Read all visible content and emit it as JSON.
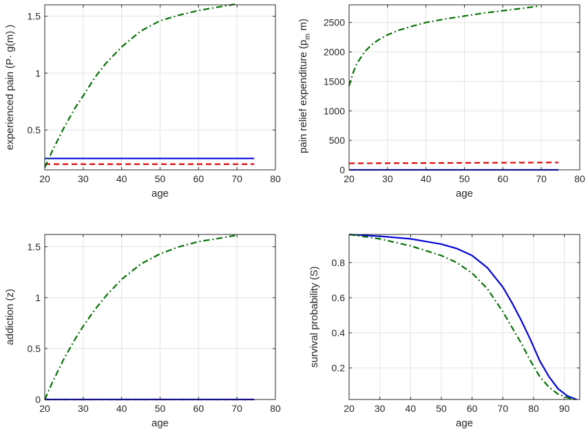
{
  "chart_data": [
    {
      "id": "experienced-pain",
      "type": "line",
      "xlabel": "age",
      "ylabel": "experienced pain (P· g(m) )",
      "xlim": [
        20,
        80
      ],
      "ylim": [
        0.15,
        1.6
      ],
      "xticks": [
        20,
        30,
        40,
        50,
        60,
        70,
        80
      ],
      "yticks": [
        0.5,
        1,
        1.5
      ],
      "ytick_labels": [
        "0.5",
        "1",
        "1.5"
      ],
      "grid": true,
      "series": [
        {
          "style": "solid",
          "color": "#0000dd",
          "x": [
            20,
            74.5
          ],
          "y": [
            0.25,
            0.25
          ]
        },
        {
          "style": "dashed",
          "color": "#dd0000",
          "x": [
            20,
            74.5
          ],
          "y": [
            0.2,
            0.2
          ]
        },
        {
          "style": "dashdot",
          "color": "#007000",
          "x": [
            20,
            22,
            25,
            28,
            30,
            33,
            36,
            40,
            45,
            50,
            55,
            60,
            65,
            69.5
          ],
          "y": [
            0.17,
            0.32,
            0.52,
            0.7,
            0.8,
            0.96,
            1.09,
            1.23,
            1.37,
            1.46,
            1.51,
            1.55,
            1.58,
            1.605
          ]
        }
      ]
    },
    {
      "id": "pain-relief-expenditure",
      "type": "line",
      "xlabel": "age",
      "ylabel": "pain relief expenditure (p",
      "ylabel_sub": "m",
      "ylabel_tail": " m)",
      "xlim": [
        20,
        80
      ],
      "ylim": [
        0,
        2800
      ],
      "xticks": [
        20,
        30,
        40,
        50,
        60,
        70,
        80
      ],
      "yticks": [
        0,
        500,
        1000,
        1500,
        2000,
        2500
      ],
      "ytick_labels": [
        "0",
        "500",
        "1000",
        "1500",
        "2000",
        "2500"
      ],
      "grid": true,
      "series": [
        {
          "style": "solid",
          "color": "#0000dd",
          "x": [
            20,
            74.5
          ],
          "y": [
            0,
            0
          ]
        },
        {
          "style": "dashed",
          "color": "#dd0000",
          "x": [
            20,
            74.5
          ],
          "y": [
            110,
            125
          ]
        },
        {
          "style": "dashdot",
          "color": "#007000",
          "x": [
            20,
            21,
            22,
            24,
            26,
            28,
            30,
            33,
            36,
            40,
            45,
            50,
            55,
            60,
            65,
            69.5
          ],
          "y": [
            1420,
            1640,
            1800,
            2000,
            2130,
            2220,
            2290,
            2370,
            2430,
            2500,
            2560,
            2610,
            2660,
            2700,
            2740,
            2780
          ]
        }
      ]
    },
    {
      "id": "addiction",
      "type": "line",
      "xlabel": "age",
      "ylabel": "addiction (z)",
      "xlim": [
        20,
        80
      ],
      "ylim": [
        0,
        1.62
      ],
      "xticks": [
        20,
        30,
        40,
        50,
        60,
        70,
        80
      ],
      "yticks": [
        0,
        0.5,
        1,
        1.5
      ],
      "ytick_labels": [
        "0",
        "0.5",
        "1",
        "1.5"
      ],
      "grid": true,
      "series": [
        {
          "style": "dashed",
          "color": "#dd0000",
          "x": [
            20,
            74.5
          ],
          "y": [
            0,
            0
          ]
        },
        {
          "style": "solid",
          "color": "#0000dd",
          "x": [
            20,
            74.5
          ],
          "y": [
            0,
            0
          ]
        },
        {
          "style": "dashdot",
          "color": "#007000",
          "x": [
            20,
            22,
            25,
            28,
            30,
            33,
            36,
            40,
            45,
            50,
            55,
            60,
            65,
            69.5
          ],
          "y": [
            0,
            0.17,
            0.4,
            0.6,
            0.72,
            0.88,
            1.02,
            1.18,
            1.33,
            1.43,
            1.5,
            1.55,
            1.58,
            1.61
          ]
        }
      ]
    },
    {
      "id": "survival-probability",
      "type": "line",
      "xlabel": "age",
      "ylabel": "survival probability (S)",
      "xlim": [
        20,
        95
      ],
      "ylim": [
        0.02,
        0.96
      ],
      "xticks": [
        20,
        30,
        40,
        50,
        60,
        70,
        80,
        90
      ],
      "yticks": [
        0.2,
        0.4,
        0.6,
        0.8
      ],
      "ytick_labels": [
        "0.2",
        "0.4",
        "0.6",
        "0.8"
      ],
      "grid": true,
      "series": [
        {
          "style": "solid",
          "color": "#0000dd",
          "x": [
            20,
            30,
            40,
            50,
            55,
            60,
            65,
            70,
            73,
            76,
            79,
            82,
            85,
            88,
            91,
            94
          ],
          "y": [
            0.96,
            0.95,
            0.935,
            0.905,
            0.88,
            0.84,
            0.77,
            0.66,
            0.57,
            0.47,
            0.36,
            0.24,
            0.15,
            0.08,
            0.04,
            0.02
          ]
        },
        {
          "style": "dashdot",
          "color": "#007000",
          "x": [
            20,
            30,
            40,
            50,
            55,
            60,
            65,
            70,
            73,
            76,
            79,
            82,
            85,
            88,
            91,
            93.5
          ],
          "y": [
            0.96,
            0.935,
            0.895,
            0.84,
            0.8,
            0.74,
            0.65,
            0.52,
            0.43,
            0.34,
            0.24,
            0.15,
            0.09,
            0.05,
            0.03,
            0.02
          ]
        }
      ]
    }
  ]
}
